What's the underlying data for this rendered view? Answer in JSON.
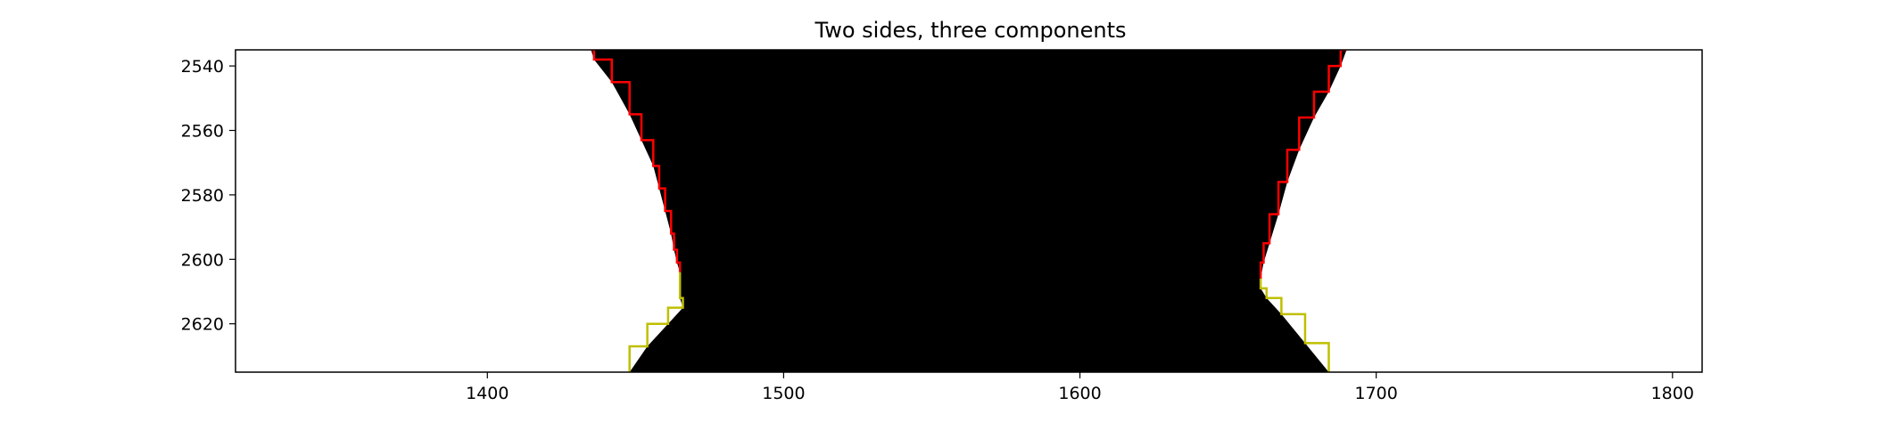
{
  "chart_data": {
    "type": "line",
    "title": "Two sides, three components",
    "xlabel": "",
    "ylabel": "",
    "xlim": [
      1315,
      1810
    ],
    "ylim": [
      2635,
      2535
    ],
    "xticks": [
      1400,
      1500,
      1600,
      1700,
      1800
    ],
    "yticks": [
      2540,
      2560,
      2580,
      2600,
      2620
    ],
    "grid": false,
    "legend": "none",
    "colors": {
      "fill": "#000000",
      "upper": "#ff0000",
      "lower": "#bfbf00",
      "background": "#ffffff"
    },
    "fill_region": {
      "left": [
        [
          1435,
          2535
        ],
        [
          1436,
          2538
        ],
        [
          1442,
          2545
        ],
        [
          1448,
          2555
        ],
        [
          1452,
          2563
        ],
        [
          1456,
          2571
        ],
        [
          1458,
          2578
        ],
        [
          1460,
          2585
        ],
        [
          1462,
          2592
        ],
        [
          1463,
          2597
        ],
        [
          1464,
          2601
        ],
        [
          1465,
          2604
        ],
        [
          1465,
          2612
        ],
        [
          1466,
          2615
        ],
        [
          1461,
          2620
        ],
        [
          1454,
          2627
        ],
        [
          1448,
          2635
        ]
      ],
      "right": [
        [
          1690,
          2535
        ],
        [
          1688,
          2540
        ],
        [
          1684,
          2548
        ],
        [
          1679,
          2556
        ],
        [
          1674,
          2566
        ],
        [
          1670,
          2576
        ],
        [
          1667,
          2586
        ],
        [
          1664,
          2595
        ],
        [
          1662,
          2601
        ],
        [
          1661,
          2606
        ],
        [
          1661,
          2609
        ],
        [
          1663,
          2612
        ],
        [
          1668,
          2617
        ],
        [
          1676,
          2626
        ],
        [
          1684,
          2635
        ]
      ]
    },
    "series": [
      {
        "color": "#ff0000",
        "points": [
          [
            1435,
            2535
          ],
          [
            1436,
            2538
          ],
          [
            1442,
            2545
          ],
          [
            1448,
            2555
          ],
          [
            1452,
            2563
          ],
          [
            1456,
            2571
          ],
          [
            1458,
            2578
          ],
          [
            1460,
            2585
          ],
          [
            1462,
            2592
          ],
          [
            1463,
            2597
          ],
          [
            1464,
            2601
          ],
          [
            1465,
            2604
          ]
        ]
      },
      {
        "color": "#bfbf00",
        "points": [
          [
            1465,
            2604
          ],
          [
            1465,
            2612
          ],
          [
            1466,
            2615
          ],
          [
            1461,
            2620
          ],
          [
            1454,
            2627
          ],
          [
            1448,
            2635
          ]
        ]
      },
      {
        "color": "#ff0000",
        "points": [
          [
            1690,
            2535
          ],
          [
            1688,
            2540
          ],
          [
            1684,
            2548
          ],
          [
            1679,
            2556
          ],
          [
            1674,
            2566
          ],
          [
            1670,
            2576
          ],
          [
            1667,
            2586
          ],
          [
            1664,
            2595
          ],
          [
            1662,
            2601
          ],
          [
            1661,
            2606
          ]
        ]
      },
      {
        "color": "#bfbf00",
        "points": [
          [
            1661,
            2606
          ],
          [
            1661,
            2609
          ],
          [
            1663,
            2612
          ],
          [
            1668,
            2617
          ],
          [
            1676,
            2626
          ],
          [
            1684,
            2635
          ]
        ]
      }
    ]
  }
}
